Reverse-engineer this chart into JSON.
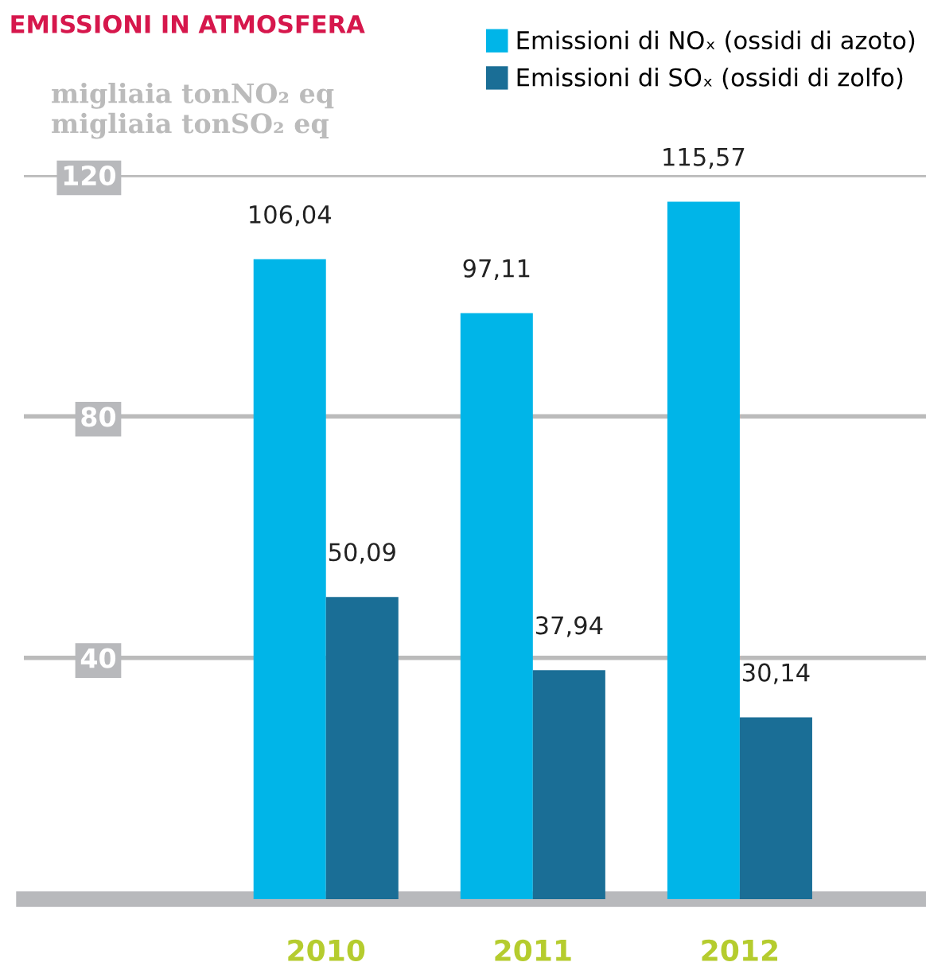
{
  "chart_data": {
    "type": "bar",
    "title": "EMISSIONI IN ATMOSFERA",
    "ylabel": "migliaia tonNO₂ eq\nmigliaia tonSO₂ eq",
    "categories": [
      "2010",
      "2011",
      "2012"
    ],
    "series": [
      {
        "name": "Emissioni di NOₓ (ossidi di azoto)",
        "color": "#00b5e8",
        "values": [
          106.04,
          97.11,
          115.57
        ],
        "value_labels": [
          "106,04",
          "97,11",
          "115,57"
        ]
      },
      {
        "name": "Emissioni di SOₓ (ossidi di zolfo)",
        "color": "#1a6e96",
        "values": [
          50.09,
          37.94,
          30.14
        ],
        "value_labels": [
          "50,09",
          "37,94",
          "30,14"
        ]
      }
    ],
    "ylim": [
      0,
      120
    ],
    "yticks": [
      40,
      80,
      120
    ],
    "grid": "y",
    "legend": "top right"
  }
}
